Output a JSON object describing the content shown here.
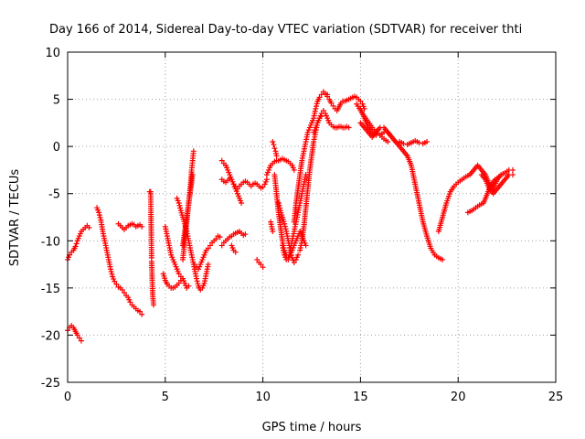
{
  "chart_data": {
    "type": "scatter",
    "title": "Day 166 of 2014, Sidereal Day-to-day VTEC variation (SDTVAR) for receiver thti",
    "xlabel": "GPS time / hours",
    "ylabel": "SDTVAR / TECUs",
    "xlim": [
      0,
      25
    ],
    "ylim": [
      -25,
      10
    ],
    "xticks": [
      0,
      5,
      10,
      15,
      20,
      25
    ],
    "yticks": [
      -25,
      -20,
      -15,
      -10,
      -5,
      0,
      5,
      10
    ],
    "xtick_labels": [
      "0",
      "5",
      "10",
      "15",
      "20",
      "25"
    ],
    "ytick_labels": [
      "-25",
      "-20",
      "-15",
      "-10",
      "-5",
      "0",
      "5",
      "10"
    ],
    "grid": true,
    "marker": "+",
    "color": "#ff0000",
    "series": [
      {
        "name": "s1",
        "x": [
          0.0,
          0.1,
          0.2,
          0.3,
          0.4,
          0.5,
          0.6,
          0.7,
          0.8,
          0.9,
          1.0,
          1.1
        ],
        "y": [
          -12.0,
          -11.5,
          -11.2,
          -11.0,
          -10.6,
          -10.0,
          -9.5,
          -9.0,
          -8.8,
          -8.6,
          -8.4,
          -8.6
        ]
      },
      {
        "name": "s2",
        "x": [
          0.0,
          0.1,
          0.2,
          0.3,
          0.4,
          0.5,
          0.6,
          0.7
        ],
        "y": [
          -19.5,
          -19.2,
          -19.0,
          -19.2,
          -19.6,
          -20.0,
          -20.3,
          -20.6
        ]
      },
      {
        "name": "s3",
        "x": [
          1.5,
          1.6,
          1.7,
          1.8,
          1.9,
          2.0,
          2.1,
          2.2,
          2.3,
          2.4,
          2.5,
          2.6,
          2.7,
          2.8,
          2.9,
          3.0,
          3.1,
          3.2,
          3.3,
          3.4,
          3.5,
          3.6,
          3.7,
          3.8
        ],
        "y": [
          -6.5,
          -7.0,
          -7.8,
          -9.0,
          -10.0,
          -11.0,
          -12.0,
          -13.0,
          -13.8,
          -14.3,
          -14.6,
          -14.9,
          -15.0,
          -15.2,
          -15.5,
          -15.8,
          -16.0,
          -16.5,
          -16.8,
          -17.0,
          -17.2,
          -17.4,
          -17.5,
          -17.8
        ]
      },
      {
        "name": "s4",
        "x": [
          2.6,
          2.7,
          2.8,
          2.9,
          3.0,
          3.1,
          3.2,
          3.3,
          3.4,
          3.5,
          3.6,
          3.7,
          3.8
        ],
        "y": [
          -8.2,
          -8.4,
          -8.6,
          -8.8,
          -8.6,
          -8.4,
          -8.3,
          -8.2,
          -8.3,
          -8.5,
          -8.4,
          -8.3,
          -8.5
        ]
      },
      {
        "name": "s5",
        "x": [
          4.2,
          4.25,
          4.3,
          4.3,
          4.35,
          4.4
        ],
        "y": [
          -4.8,
          -4.8,
          -11.8,
          -12.2,
          -15.5,
          -16.8
        ]
      },
      {
        "name": "s6",
        "x": [
          4.9,
          5.0,
          5.1,
          5.2,
          5.3,
          5.4,
          5.5,
          5.6,
          5.7,
          5.8,
          5.9,
          6.0,
          6.1,
          6.2
        ],
        "y": [
          -13.5,
          -14.2,
          -14.6,
          -14.8,
          -15.0,
          -15.0,
          -14.9,
          -14.7,
          -14.5,
          -14.2,
          -14.0,
          -14.5,
          -15.0,
          -14.8
        ]
      },
      {
        "name": "s7",
        "x": [
          5.0,
          5.1,
          5.2,
          5.3,
          5.4,
          5.5,
          5.6,
          5.7,
          5.8,
          5.9
        ],
        "y": [
          -8.5,
          -9.5,
          -10.5,
          -11.5,
          -12.0,
          -12.5,
          -13.0,
          -13.5,
          -13.8,
          -14.0
        ]
      },
      {
        "name": "s8",
        "x": [
          5.6,
          5.7,
          5.8,
          5.9,
          6.0,
          6.1,
          6.2,
          6.3,
          6.4,
          6.5,
          6.6,
          6.7,
          6.8,
          6.9,
          7.0,
          7.1,
          7.2
        ],
        "y": [
          -5.5,
          -6.0,
          -6.8,
          -7.5,
          -8.2,
          -9.0,
          -10.0,
          -11.0,
          -12.0,
          -13.0,
          -14.0,
          -14.8,
          -15.2,
          -15.0,
          -14.5,
          -13.5,
          -12.5
        ]
      },
      {
        "name": "s9",
        "x": [
          5.9,
          6.0,
          6.1,
          6.2,
          6.3,
          6.35,
          6.4,
          6.45
        ],
        "y": [
          -12.0,
          -10.0,
          -8.0,
          -6.0,
          -4.0,
          -2.5,
          -1.5,
          -0.5
        ]
      },
      {
        "name": "s10",
        "x": [
          5.9,
          6.0,
          6.1,
          6.2,
          6.3,
          6.4
        ],
        "y": [
          -10.5,
          -9.0,
          -7.5,
          -6.0,
          -4.5,
          -3.0
        ]
      },
      {
        "name": "s11",
        "x": [
          6.5,
          6.6,
          6.7,
          6.8,
          6.9,
          7.0,
          7.1,
          7.2,
          7.3,
          7.4,
          7.5,
          7.6,
          7.7,
          7.8
        ],
        "y": [
          -12.5,
          -12.8,
          -13.0,
          -12.5,
          -12.0,
          -11.5,
          -11.0,
          -10.8,
          -10.5,
          -10.2,
          -10.0,
          -9.8,
          -9.5,
          -9.6
        ]
      },
      {
        "name": "s12",
        "x": [
          7.9,
          8.0,
          8.1,
          8.2,
          8.3,
          8.4,
          8.5,
          8.6,
          8.7,
          8.8,
          8.9,
          9.0,
          9.1
        ],
        "y": [
          -10.5,
          -10.2,
          -10.0,
          -9.8,
          -9.6,
          -9.5,
          -9.3,
          -9.2,
          -9.1,
          -9.0,
          -9.2,
          -9.4,
          -9.3
        ]
      },
      {
        "name": "s13",
        "x": [
          7.9,
          8.0,
          8.1,
          8.2,
          8.3,
          8.4,
          8.5,
          8.6,
          8.7,
          8.8,
          8.9
        ],
        "y": [
          -1.5,
          -1.8,
          -2.0,
          -2.5,
          -3.0,
          -3.5,
          -4.0,
          -4.5,
          -5.0,
          -5.5,
          -6.0
        ]
      },
      {
        "name": "s14",
        "x": [
          8.5,
          8.6,
          8.7,
          8.8,
          8.9,
          9.0,
          9.1,
          9.2,
          9.3,
          9.4,
          9.5,
          9.6,
          9.7,
          9.8,
          9.9,
          10.0,
          10.1,
          10.2
        ],
        "y": [
          -4.0,
          -4.3,
          -4.5,
          -4.2,
          -4.0,
          -3.8,
          -3.7,
          -3.8,
          -4.0,
          -4.2,
          -4.0,
          -3.9,
          -4.0,
          -4.2,
          -4.4,
          -4.3,
          -4.0,
          -3.5
        ]
      },
      {
        "name": "s15",
        "x": [
          7.9,
          8.0,
          8.1,
          8.2,
          8.3
        ],
        "y": [
          -3.5,
          -3.7,
          -3.8,
          -3.6,
          -3.4
        ]
      },
      {
        "name": "s16",
        "x": [
          8.4,
          8.5,
          8.6
        ],
        "y": [
          -10.5,
          -11.0,
          -11.2
        ]
      },
      {
        "name": "s17",
        "x": [
          9.7,
          9.8,
          9.9,
          10.0
        ],
        "y": [
          -12.0,
          -12.3,
          -12.5,
          -12.8
        ]
      },
      {
        "name": "s18",
        "x": [
          10.2,
          10.3,
          10.4,
          10.5,
          10.6,
          10.7,
          10.8,
          10.9,
          11.0,
          11.1,
          11.2,
          11.3,
          11.4,
          11.5,
          11.6
        ],
        "y": [
          -3.0,
          -2.5,
          -2.0,
          -1.8,
          -1.6,
          -1.5,
          -1.5,
          -1.4,
          -1.3,
          -1.4,
          -1.5,
          -1.6,
          -1.8,
          -2.0,
          -2.5
        ]
      },
      {
        "name": "s19",
        "x": [
          10.5,
          10.55,
          10.6,
          10.65,
          10.7
        ],
        "y": [
          0.5,
          0.2,
          -0.2,
          -0.5,
          -1.0
        ]
      },
      {
        "name": "s20",
        "x": [
          10.4,
          10.45,
          10.5
        ],
        "y": [
          -8.0,
          -8.5,
          -9.0
        ]
      },
      {
        "name": "s21",
        "x": [
          10.6,
          10.7,
          10.8,
          10.9,
          11.0,
          11.1,
          11.2,
          11.3,
          11.4,
          11.5,
          11.6,
          11.7,
          11.8,
          11.9,
          12.0,
          12.1,
          12.2
        ],
        "y": [
          -3.0,
          -5.0,
          -7.0,
          -8.5,
          -10.0,
          -11.0,
          -11.5,
          -11.8,
          -11.5,
          -11.0,
          -10.5,
          -10.0,
          -9.5,
          -9.0,
          -9.5,
          -10.0,
          -10.5
        ]
      },
      {
        "name": "s22",
        "x": [
          10.8,
          10.9,
          11.0,
          11.1,
          11.2,
          11.3,
          11.4,
          11.5,
          11.6,
          11.7,
          11.8
        ],
        "y": [
          -6.0,
          -6.8,
          -7.5,
          -8.2,
          -9.0,
          -10.0,
          -11.0,
          -11.8,
          -12.3,
          -12.0,
          -11.5
        ]
      },
      {
        "name": "s23",
        "x": [
          11.0,
          11.1,
          11.2,
          11.3,
          11.4,
          11.5,
          11.6,
          11.7,
          11.8,
          11.9,
          12.0,
          12.1,
          12.2
        ],
        "y": [
          -10.5,
          -11.5,
          -12.0,
          -12.0,
          -11.0,
          -10.0,
          -9.0,
          -8.0,
          -7.0,
          -6.0,
          -5.0,
          -4.0,
          -3.0
        ]
      },
      {
        "name": "s24",
        "x": [
          11.9,
          12.0,
          12.1,
          12.2,
          12.3,
          12.4,
          12.5,
          12.6,
          12.7,
          12.8,
          12.9,
          13.0
        ],
        "y": [
          -11.0,
          -10.0,
          -8.5,
          -6.5,
          -4.5,
          -2.5,
          -1.0,
          0.5,
          1.5,
          2.5,
          3.0,
          3.2
        ]
      },
      {
        "name": "s25",
        "x": [
          11.6,
          11.7,
          11.8,
          11.9,
          12.0,
          12.1,
          12.2,
          12.3,
          12.4,
          12.5,
          12.6,
          12.7,
          12.8,
          12.9,
          13.0,
          13.1,
          13.2,
          13.3
        ],
        "y": [
          -8.0,
          -6.0,
          -4.5,
          -3.0,
          -1.5,
          -0.5,
          0.5,
          1.5,
          2.0,
          2.5,
          3.0,
          4.0,
          4.8,
          5.2,
          5.5,
          5.8,
          5.6,
          5.5
        ]
      },
      {
        "name": "s26",
        "x": [
          12.6,
          12.7,
          12.8,
          12.9,
          13.0,
          13.1,
          13.2,
          13.3,
          13.4,
          13.5,
          13.6,
          13.7,
          13.8,
          13.9,
          14.0,
          14.1,
          14.2,
          14.3,
          14.4
        ],
        "y": [
          1.5,
          2.0,
          2.5,
          3.0,
          3.5,
          3.8,
          3.5,
          3.0,
          2.5,
          2.3,
          2.1,
          2.0,
          2.0,
          2.1,
          2.1,
          2.0,
          2.0,
          2.1,
          2.0
        ]
      },
      {
        "name": "s27",
        "x": [
          13.3,
          13.4,
          13.5,
          13.6,
          13.7,
          13.8,
          13.9,
          14.0,
          14.1,
          14.2,
          14.3,
          14.4,
          14.5,
          14.6,
          14.7,
          14.8,
          14.9,
          15.0,
          15.1,
          15.2
        ],
        "y": [
          5.3,
          5.0,
          4.6,
          4.3,
          4.0,
          3.8,
          4.2,
          4.6,
          4.8,
          4.8,
          4.9,
          5.0,
          5.1,
          5.2,
          5.3,
          5.2,
          5.0,
          4.8,
          4.5,
          4.0
        ]
      },
      {
        "name": "s28",
        "x": [
          15.0,
          15.2,
          15.4,
          15.6,
          15.8,
          16.0,
          16.2,
          16.4,
          16.6,
          16.8,
          17.0,
          17.2,
          17.4,
          17.6,
          17.8,
          18.0,
          18.2,
          18.4,
          18.6,
          18.8,
          19.0,
          19.2
        ],
        "y": [
          4.0,
          3.0,
          2.0,
          1.5,
          1.2,
          1.2,
          1.5,
          1.5,
          1.0,
          0.5,
          0.0,
          -0.5,
          -1.0,
          -2.0,
          -4.0,
          -6.0,
          -8.0,
          -9.5,
          -10.8,
          -11.5,
          -11.8,
          -12.0
        ]
      },
      {
        "name": "s29",
        "x": [
          15.0,
          15.2,
          15.4,
          15.6,
          15.8,
          16.0,
          16.2,
          16.4,
          16.6,
          16.8,
          17.0,
          17.2,
          17.4,
          17.6,
          17.8,
          18.0,
          18.2,
          18.4
        ],
        "y": [
          2.5,
          2.0,
          1.5,
          1.0,
          1.5,
          2.0,
          2.0,
          1.5,
          1.0,
          0.5,
          0.5,
          0.3,
          0.2,
          0.4,
          0.6,
          0.4,
          0.3,
          0.5
        ]
      },
      {
        "name": "s30",
        "x": [
          14.8,
          15.0,
          15.2,
          15.4,
          15.6,
          15.8,
          16.0,
          16.2,
          16.4
        ],
        "y": [
          4.5,
          3.8,
          3.2,
          2.6,
          2.0,
          1.6,
          1.2,
          0.8,
          0.5
        ]
      },
      {
        "name": "s31",
        "x": [
          19.0,
          19.2,
          19.4,
          19.6,
          19.8,
          20.0,
          20.2,
          20.4,
          20.6,
          20.8,
          21.0,
          21.2,
          21.4,
          21.6,
          21.8,
          22.0,
          22.2,
          22.4,
          22.6,
          22.8
        ],
        "y": [
          -9.0,
          -7.5,
          -6.0,
          -4.8,
          -4.2,
          -3.8,
          -3.5,
          -3.2,
          -3.0,
          -2.5,
          -2.0,
          -2.5,
          -3.0,
          -4.0,
          -4.5,
          -3.5,
          -3.0,
          -2.8,
          -2.5,
          -2.5
        ]
      },
      {
        "name": "s32",
        "x": [
          20.5,
          20.7,
          20.9,
          21.1,
          21.3,
          21.5,
          21.7,
          21.9,
          22.1
        ],
        "y": [
          -7.0,
          -6.8,
          -6.5,
          -6.2,
          -6.0,
          -5.0,
          -4.0,
          -3.5,
          -3.2
        ]
      },
      {
        "name": "s33",
        "x": [
          21.2,
          21.4,
          21.6,
          21.8,
          22.0,
          22.2,
          22.4,
          22.6,
          22.8
        ],
        "y": [
          -3.0,
          -3.5,
          -4.5,
          -5.0,
          -4.5,
          -4.0,
          -3.5,
          -3.0,
          -3.0
        ]
      }
    ]
  }
}
